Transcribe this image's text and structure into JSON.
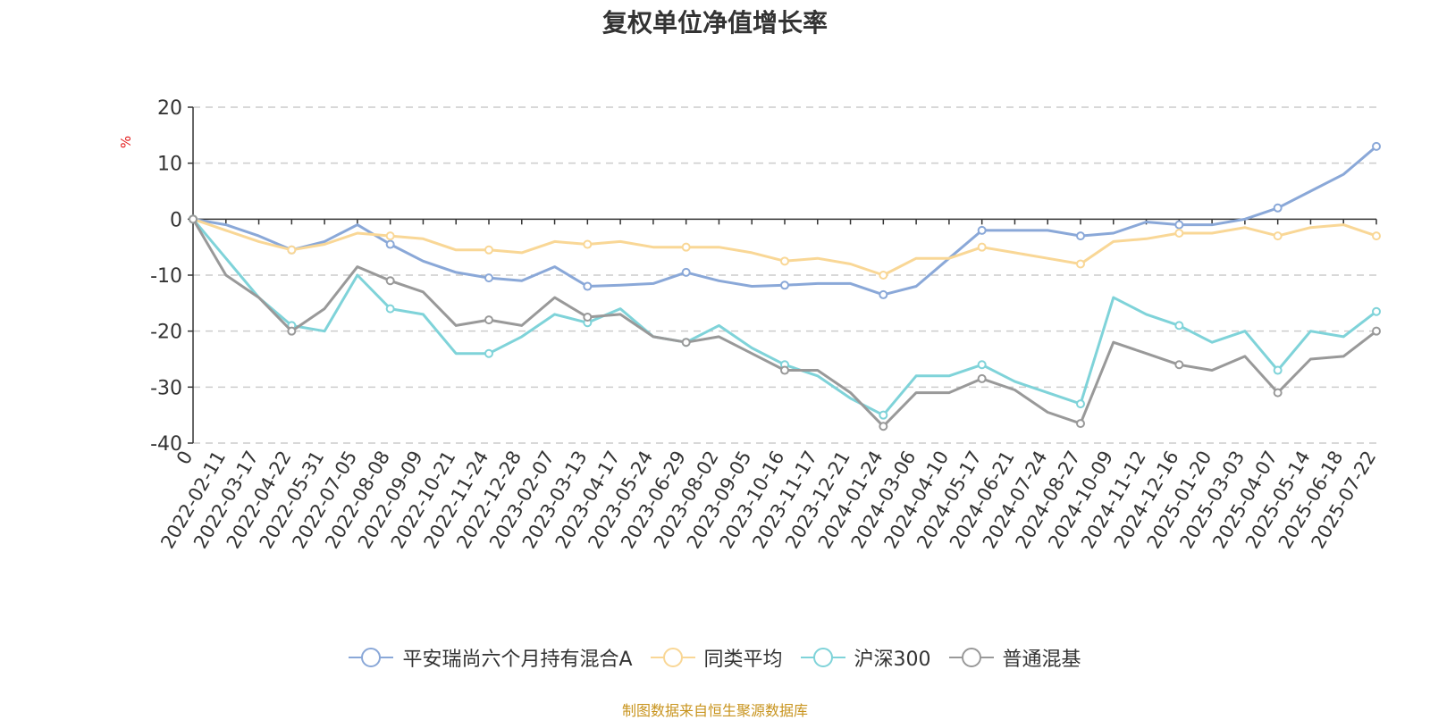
{
  "title": "复权单位净值增长率",
  "source": "制图数据来自恒生聚源数据库",
  "chart_data": {
    "type": "line",
    "title": "复权单位净值增长率",
    "ylabel": "%",
    "ylim": [
      -40,
      20
    ],
    "yticks": [
      20,
      10,
      0,
      -10,
      -20,
      -30,
      -40
    ],
    "grid": true,
    "legend_position": "bottom",
    "x": [
      "0",
      "2022-02-11",
      "2022-03-17",
      "2022-04-22",
      "2022-05-31",
      "2022-07-05",
      "2022-08-08",
      "2022-09-09",
      "2022-10-21",
      "2022-11-24",
      "2022-12-28",
      "2023-02-07",
      "2023-03-13",
      "2023-04-17",
      "2023-05-24",
      "2023-06-29",
      "2023-08-02",
      "2023-09-05",
      "2023-10-16",
      "2023-11-17",
      "2023-12-21",
      "2024-01-24",
      "2024-03-06",
      "2024-04-10",
      "2024-05-17",
      "2024-06-21",
      "2024-07-24",
      "2024-08-27",
      "2024-10-09",
      "2024-11-12",
      "2024-12-16",
      "2025-01-20",
      "2025-03-03",
      "2025-04-07",
      "2025-05-14",
      "2025-06-18",
      "2025-07-22"
    ],
    "series": [
      {
        "name": "平安瑞尚六个月持有混合A",
        "color": "#8aa8d8",
        "values": [
          0,
          -1,
          -3,
          -5.5,
          -4,
          -1,
          -4.5,
          -7.5,
          -9.5,
          -10.5,
          -11,
          -8.5,
          -12,
          -11.8,
          -11.5,
          -9.5,
          -11,
          -12,
          -11.8,
          -11.5,
          -11.5,
          -13.5,
          -12,
          -7,
          -2,
          -2,
          -2,
          -3,
          -2.5,
          -0.5,
          -1,
          -1,
          0,
          2,
          5,
          8,
          13
        ]
      },
      {
        "name": "同类平均",
        "color": "#f9d796",
        "values": [
          0,
          -2,
          -4,
          -5.5,
          -4.5,
          -2.5,
          -3,
          -3.5,
          -5.5,
          -5.5,
          -6,
          -4,
          -4.5,
          -4,
          -5,
          -5,
          -5,
          -6,
          -7.5,
          -7,
          -8,
          -10,
          -7,
          -7,
          -5,
          -6,
          -7,
          -8,
          -4,
          -3.5,
          -2.5,
          -2.5,
          -1.5,
          -3,
          -1.5,
          -1,
          -3
        ]
      },
      {
        "name": "沪深300",
        "color": "#7fd3d9",
        "values": [
          0,
          -7,
          -14,
          -19,
          -20,
          -10,
          -16,
          -17,
          -24,
          -24,
          -21,
          -17,
          -18.5,
          -16,
          -21,
          -22,
          -19,
          -23,
          -26,
          -28,
          -32,
          -35,
          -28,
          -28,
          -26,
          -29,
          -31,
          -33,
          -14,
          -17,
          -19,
          -22,
          -20,
          -27,
          -20,
          -21,
          -16.5
        ]
      },
      {
        "name": "普通混基",
        "color": "#999999",
        "values": [
          0,
          -10,
          -14,
          -20,
          -16,
          -8.5,
          -11,
          -13,
          -19,
          -18,
          -19,
          -14,
          -17.5,
          -17,
          -21,
          -22,
          -21,
          -24,
          -27,
          -27,
          -31,
          -37,
          -31,
          -31,
          -28.5,
          -30.5,
          -34.5,
          -36.5,
          -22,
          -24,
          -26,
          -27,
          -24.5,
          -31,
          -25,
          -24.5,
          -20
        ]
      }
    ]
  }
}
